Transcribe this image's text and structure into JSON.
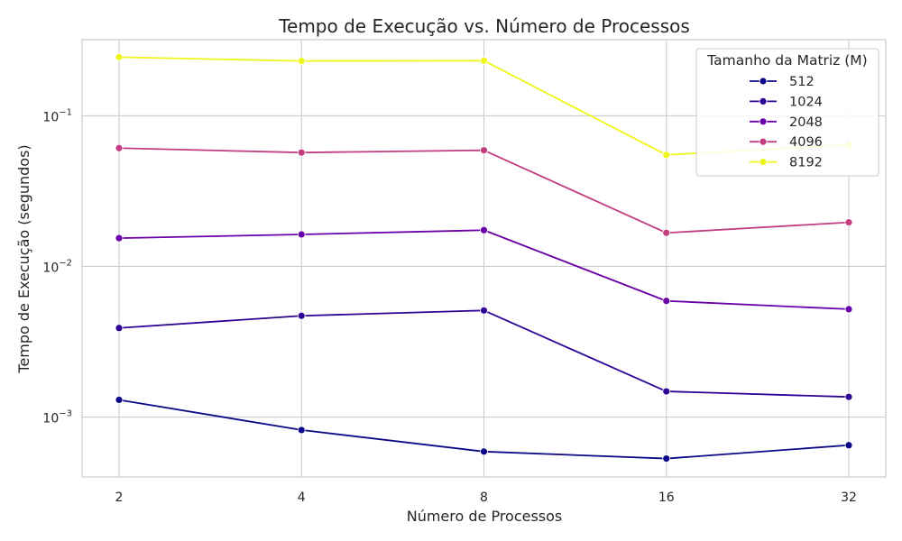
{
  "chart_data": {
    "type": "line",
    "title": "Tempo de Execução vs. Número de Processos",
    "xlabel": "Número de Processos",
    "ylabel": "Tempo de Execução (segundos)",
    "x": [
      2,
      4,
      8,
      16,
      32
    ],
    "x_tick_labels": [
      "2",
      "4",
      "8",
      "16",
      "32"
    ],
    "x_scale": "log2",
    "y_scale": "log",
    "ylim": [
      0.0004,
      0.32
    ],
    "y_ticks": [
      {
        "value": 0.001,
        "base": "10",
        "exp": "−3"
      },
      {
        "value": 0.01,
        "base": "10",
        "exp": "−2"
      },
      {
        "value": 0.1,
        "base": "10",
        "exp": "−1"
      }
    ],
    "grid": true,
    "legend": {
      "title": "Tamanho da Matriz (M)",
      "position": "top-right"
    },
    "series": [
      {
        "name": "512",
        "color": "#0d0887",
        "values": [
          0.0013,
          0.00082,
          0.00059,
          0.00053,
          0.00065
        ]
      },
      {
        "name": "1024",
        "color": "#2e0595",
        "values": [
          0.0039,
          0.0047,
          0.0051,
          0.00148,
          0.00136
        ]
      },
      {
        "name": "2048",
        "color": "#6a00a8",
        "values": [
          0.0154,
          0.0163,
          0.0174,
          0.0059,
          0.0052
        ]
      },
      {
        "name": "4096",
        "color": "#c33d80",
        "values": [
          0.061,
          0.057,
          0.059,
          0.0167,
          0.0196
        ]
      },
      {
        "name": "8192",
        "color": "#eef51a",
        "values": [
          0.245,
          0.231,
          0.232,
          0.055,
          0.064
        ]
      }
    ]
  }
}
